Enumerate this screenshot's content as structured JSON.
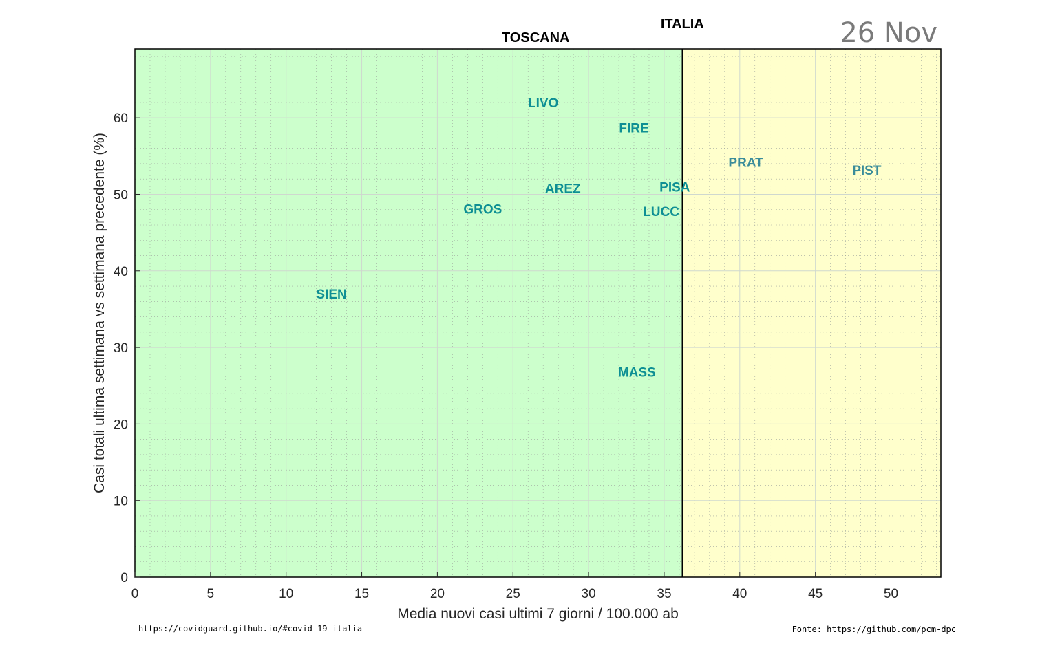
{
  "chart_data": {
    "type": "scatter",
    "region_label": "TOSCANA",
    "national_label": "ITALIA",
    "date": "26 Nov",
    "xlabel": "Media nuovi casi ultimi 7 giorni / 100.000 ab",
    "ylabel": "Casi totali ultima settimana vs settimana precedente (%)",
    "xlim": [
      0,
      53.3
    ],
    "ylim": [
      0,
      69
    ],
    "xticks": [
      0,
      5,
      10,
      15,
      20,
      25,
      30,
      35,
      40,
      45,
      50
    ],
    "yticks": [
      0,
      10,
      20,
      30,
      40,
      50,
      60
    ],
    "grid": true,
    "region_avg_x": 26.5,
    "italia_x": 36.2,
    "zones": [
      {
        "from": 0,
        "to": 36.2,
        "color": "#ccffcc"
      },
      {
        "from": 36.2,
        "to": 53.3,
        "color": "#ffffcc"
      }
    ],
    "points": [
      {
        "label": "LIVO",
        "x": 27.0,
        "y": 62.0,
        "color": "#0e8f94"
      },
      {
        "label": "FIRE",
        "x": 33.0,
        "y": 58.7,
        "color": "#0e8f94"
      },
      {
        "label": "PRAT",
        "x": 40.4,
        "y": 54.2,
        "color": "#3a8c9a"
      },
      {
        "label": "PIST",
        "x": 48.4,
        "y": 53.2,
        "color": "#3a8c9a"
      },
      {
        "label": "AREZ",
        "x": 28.3,
        "y": 50.8,
        "color": "#0e8f94"
      },
      {
        "label": "PISA",
        "x": 35.7,
        "y": 51.0,
        "color": "#0e8f94"
      },
      {
        "label": "GROS",
        "x": 23.0,
        "y": 48.1,
        "color": "#0e8f94"
      },
      {
        "label": "LUCC",
        "x": 34.8,
        "y": 47.8,
        "color": "#0e8f94"
      },
      {
        "label": "SIEN",
        "x": 13.0,
        "y": 37.0,
        "color": "#0e8f94"
      },
      {
        "label": "MASS",
        "x": 33.2,
        "y": 26.8,
        "color": "#0e8f94"
      }
    ],
    "colors": {
      "italia_line": "#000000",
      "grid_major": "#cfd8cf",
      "grid_minor": "#9aa09a"
    }
  },
  "footer": {
    "left": "https://covidguard.github.io/#covid-19-italia",
    "right": "Fonte: https://github.com/pcm-dpc"
  }
}
